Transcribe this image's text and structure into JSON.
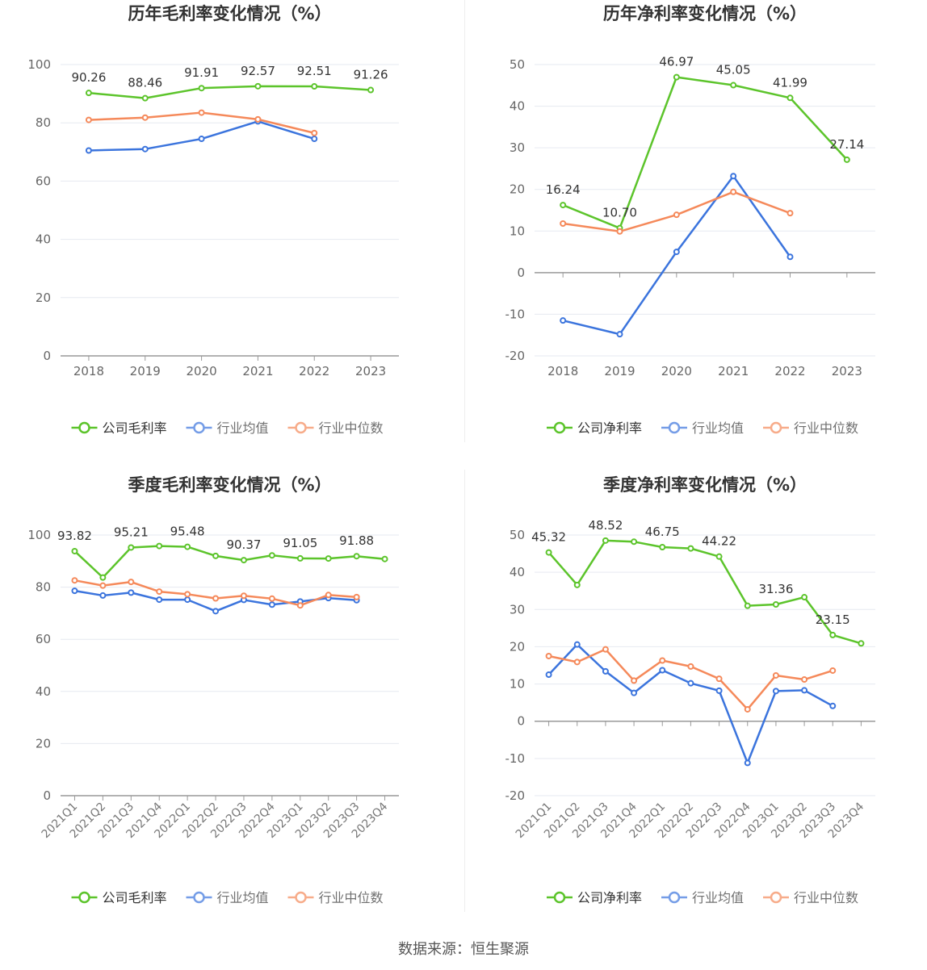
{
  "source": "数据来源：恒生聚源",
  "colors": {
    "company": "#5cc42b",
    "industry_avg": "#3b74dd",
    "industry_median": "#f5895a"
  },
  "chart_data": [
    {
      "type": "line",
      "title": "历年毛利率变化情况（%）",
      "categories": [
        "2018",
        "2019",
        "2020",
        "2021",
        "2022",
        "2023"
      ],
      "ylim": [
        0,
        100
      ],
      "yticks": [
        0,
        20,
        40,
        60,
        80,
        100
      ],
      "grid": true,
      "legend_position": "bottom",
      "series": [
        {
          "name": "公司毛利率",
          "key": "company",
          "values": [
            90.26,
            88.46,
            91.91,
            92.57,
            92.51,
            91.26
          ],
          "labels": [
            "90.26",
            "88.46",
            "91.91",
            "92.57",
            "92.51",
            "91.26"
          ]
        },
        {
          "name": "行业均值",
          "key": "industry_avg",
          "values": [
            70.5,
            71.0,
            74.5,
            80.5,
            74.5,
            null
          ]
        },
        {
          "name": "行业中位数",
          "key": "industry_median",
          "values": [
            81.0,
            81.8,
            83.5,
            81.2,
            76.5,
            null
          ]
        }
      ]
    },
    {
      "type": "line",
      "title": "历年净利率变化情况（%）",
      "categories": [
        "2018",
        "2019",
        "2020",
        "2021",
        "2022",
        "2023"
      ],
      "ylim": [
        -20,
        50
      ],
      "yticks": [
        -20,
        -10,
        0,
        10,
        20,
        30,
        40,
        50
      ],
      "grid": true,
      "legend_position": "bottom",
      "series": [
        {
          "name": "公司净利率",
          "key": "company",
          "values": [
            16.24,
            10.7,
            46.97,
            45.05,
            41.99,
            27.14
          ],
          "labels": [
            "16.24",
            "10.70",
            "46.97",
            "45.05",
            "41.99",
            "27.14"
          ]
        },
        {
          "name": "行业均值",
          "key": "industry_avg",
          "values": [
            -11.5,
            -14.8,
            5.0,
            23.2,
            3.8,
            null
          ]
        },
        {
          "name": "行业中位数",
          "key": "industry_median",
          "values": [
            11.8,
            9.9,
            13.9,
            19.4,
            14.3,
            null
          ]
        }
      ]
    },
    {
      "type": "line",
      "title": "季度毛利率变化情况（%）",
      "categories": [
        "2021Q1",
        "2021Q2",
        "2021Q3",
        "2021Q4",
        "2022Q1",
        "2022Q2",
        "2022Q3",
        "2022Q4",
        "2023Q1",
        "2023Q2",
        "2023Q3",
        "2023Q4"
      ],
      "ylim": [
        0,
        100
      ],
      "yticks": [
        0,
        20,
        40,
        60,
        80,
        100
      ],
      "grid": true,
      "legend_position": "bottom",
      "series": [
        {
          "name": "公司毛利率",
          "key": "company",
          "values": [
            93.82,
            83.7,
            95.21,
            95.8,
            95.48,
            92.0,
            90.37,
            92.2,
            91.05,
            91.0,
            91.88,
            90.8
          ],
          "labels": [
            "93.82",
            "",
            "95.21",
            "",
            "95.48",
            "",
            "90.37",
            "",
            "91.05",
            "",
            "91.88",
            ""
          ]
        },
        {
          "name": "行业均值",
          "key": "industry_avg",
          "values": [
            78.6,
            76.8,
            77.9,
            75.2,
            75.2,
            70.8,
            75.1,
            73.3,
            74.5,
            75.8,
            75.0,
            null
          ]
        },
        {
          "name": "行业中位数",
          "key": "industry_median",
          "values": [
            82.6,
            80.6,
            82.0,
            78.3,
            77.3,
            75.7,
            76.7,
            75.6,
            73.0,
            77.0,
            76.2,
            null
          ]
        }
      ]
    },
    {
      "type": "line",
      "title": "季度净利率变化情况（%）",
      "categories": [
        "2021Q1",
        "2021Q2",
        "2021Q3",
        "2021Q4",
        "2022Q1",
        "2022Q2",
        "2022Q3",
        "2022Q4",
        "2023Q1",
        "2023Q2",
        "2023Q3",
        "2023Q4"
      ],
      "ylim": [
        -20,
        50
      ],
      "yticks": [
        -20,
        -10,
        0,
        10,
        20,
        30,
        40,
        50
      ],
      "grid": true,
      "legend_position": "bottom",
      "series": [
        {
          "name": "公司净利率",
          "key": "company",
          "values": [
            45.32,
            36.6,
            48.52,
            48.2,
            46.75,
            46.4,
            44.22,
            31.0,
            31.36,
            33.3,
            23.15,
            20.9
          ],
          "labels": [
            "45.32",
            "",
            "48.52",
            "",
            "46.75",
            "",
            "44.22",
            "",
            "31.36",
            "",
            "23.15",
            ""
          ]
        },
        {
          "name": "行业均值",
          "key": "industry_avg",
          "values": [
            12.5,
            20.6,
            13.4,
            7.6,
            13.7,
            10.2,
            8.2,
            -11.2,
            8.1,
            8.3,
            4.1,
            null
          ]
        },
        {
          "name": "行业中位数",
          "key": "industry_median",
          "values": [
            17.5,
            15.9,
            19.3,
            10.9,
            16.3,
            14.7,
            11.4,
            3.2,
            12.3,
            11.2,
            13.6,
            null
          ]
        }
      ]
    }
  ]
}
